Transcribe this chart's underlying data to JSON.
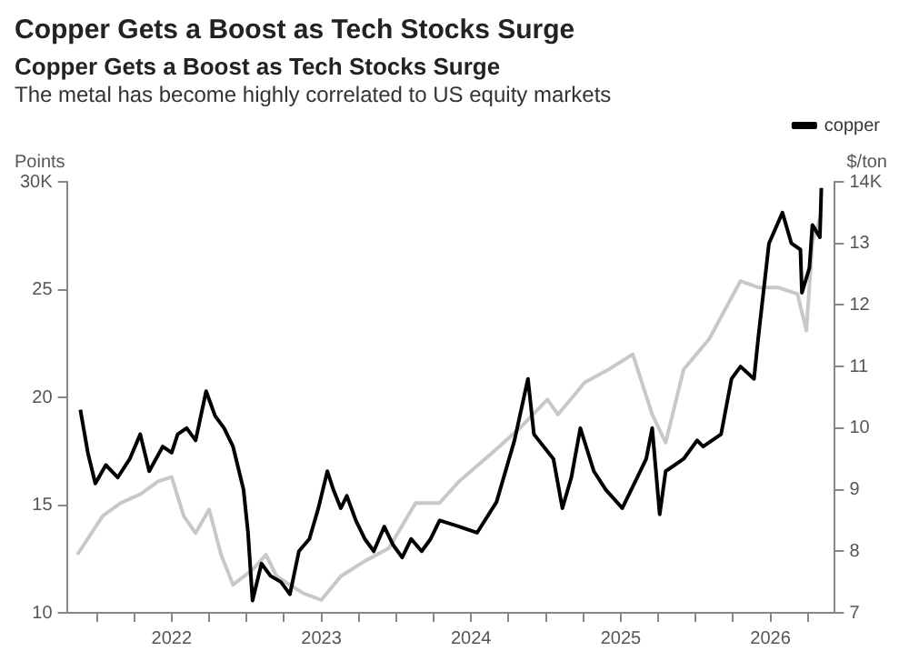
{
  "chart_data": {
    "type": "line",
    "title": "Copper Gets a Boost as Tech Stocks Surge",
    "subtitle": "The metal has become highly correlated to US equity markets",
    "annotations": [
      "Copper Gets a Boost as Tech Stocks Surge"
    ],
    "ylabel": "Points",
    "y2label": "$/ton",
    "series": [
      {
        "color": "#c8c8c8",
        "x": [
          2021.37,
          2021.54,
          2021.66,
          2021.79,
          2021.91,
          2022.0,
          2022.08,
          2022.16,
          2022.25,
          2022.33,
          2022.41,
          2022.54,
          2022.63,
          2022.7,
          2022.88,
          2023.0,
          2023.13,
          2023.29,
          2023.45,
          2023.63,
          2023.79,
          2023.92,
          2024.17,
          2024.33,
          2024.51,
          2024.58,
          2024.76,
          2024.92,
          2025.08,
          2025.21,
          2025.3,
          2025.42,
          2025.59,
          2025.8,
          2025.92,
          2026.05,
          2026.18,
          2026.24,
          2026.28,
          2026.34
        ],
        "values": [
          12.7,
          14.5,
          15.1,
          15.5,
          16.1,
          16.3,
          14.5,
          13.7,
          14.8,
          12.7,
          11.3,
          12.0,
          12.7,
          11.7,
          10.9,
          10.6,
          11.7,
          12.4,
          13.0,
          15.1,
          15.1,
          16.1,
          17.6,
          18.6,
          19.9,
          19.2,
          20.7,
          21.3,
          22.0,
          19.2,
          17.9,
          21.3,
          22.7,
          25.4,
          25.1,
          25.1,
          24.8,
          23.1,
          27.2,
          28.5
        ]
      },
      {
        "name": "copper",
        "color": "#000000",
        "axis": "y2",
        "x": [
          2021.39,
          2021.44,
          2021.49,
          2021.56,
          2021.64,
          2021.72,
          2021.79,
          2021.85,
          2021.94,
          2022.0,
          2022.04,
          2022.1,
          2022.16,
          2022.23,
          2022.29,
          2022.35,
          2022.41,
          2022.48,
          2022.51,
          2022.54,
          2022.6,
          2022.66,
          2022.73,
          2022.79,
          2022.85,
          2022.92,
          2022.98,
          2023.04,
          2023.08,
          2023.13,
          2023.17,
          2023.23,
          2023.29,
          2023.35,
          2023.42,
          2023.48,
          2023.54,
          2023.6,
          2023.67,
          2023.73,
          2023.79,
          2023.92,
          2024.04,
          2024.17,
          2024.29,
          2024.38,
          2024.42,
          2024.55,
          2024.61,
          2024.67,
          2024.73,
          2024.82,
          2024.9,
          2025.01,
          2025.11,
          2025.17,
          2025.21,
          2025.26,
          2025.3,
          2025.42,
          2025.51,
          2025.55,
          2025.67,
          2025.74,
          2025.8,
          2025.89,
          2025.92,
          2025.99,
          2026.08,
          2026.14,
          2026.2,
          2026.21,
          2026.26,
          2026.28,
          2026.33,
          2026.34
        ],
        "values": [
          10.3,
          9.6,
          9.1,
          9.4,
          9.2,
          9.5,
          9.9,
          9.3,
          9.7,
          9.6,
          9.9,
          10.0,
          9.8,
          10.6,
          10.2,
          10.0,
          9.7,
          9.0,
          8.3,
          7.2,
          7.8,
          7.6,
          7.5,
          7.3,
          8.0,
          8.2,
          8.7,
          9.3,
          9.0,
          8.7,
          8.9,
          8.5,
          8.2,
          8.0,
          8.4,
          8.1,
          7.9,
          8.2,
          8.0,
          8.2,
          8.5,
          8.4,
          8.3,
          8.8,
          9.8,
          10.8,
          9.9,
          9.5,
          8.7,
          9.2,
          10.0,
          9.3,
          9.0,
          8.7,
          9.2,
          9.5,
          10.0,
          8.6,
          9.3,
          9.5,
          9.8,
          9.7,
          9.9,
          10.8,
          11.0,
          10.8,
          11.5,
          13.0,
          13.5,
          13.0,
          12.9,
          12.2,
          12.6,
          13.3,
          13.1,
          13.9
        ]
      }
    ],
    "xlim": [
      2021.3,
      2026.43
    ],
    "xticks": [
      {
        "value": 2021.5,
        "label": null
      },
      {
        "value": 2021.75,
        "label": null
      },
      2022,
      {
        "value": 2022.25,
        "label": null
      },
      {
        "value": 2022.5,
        "label": null
      },
      {
        "value": 2022.75,
        "label": null
      },
      2023,
      {
        "value": 2023.25,
        "label": null
      },
      {
        "value": 2023.5,
        "label": null
      },
      {
        "value": 2023.75,
        "label": null
      },
      2024,
      {
        "value": 2024.25,
        "label": null
      },
      {
        "value": 2024.5,
        "label": null
      },
      {
        "value": 2024.75,
        "label": null
      },
      2025,
      {
        "value": 2025.25,
        "label": null
      },
      {
        "value": 2025.5,
        "label": null
      },
      {
        "value": 2025.75,
        "label": null
      },
      2026,
      {
        "value": 2026.25,
        "label": null
      }
    ],
    "ylim": [
      10,
      30
    ],
    "yticks": [
      10,
      15,
      20,
      25,
      {
        "value": 30,
        "label": "30K"
      }
    ],
    "y2lim": [
      7,
      14
    ],
    "y2ticks": [
      7,
      8,
      9,
      10,
      11,
      12,
      13,
      {
        "value": 14,
        "label": "14K"
      }
    ],
    "grid": false,
    "legend": "top right",
    "marker": "none",
    "line_style": "solid"
  }
}
